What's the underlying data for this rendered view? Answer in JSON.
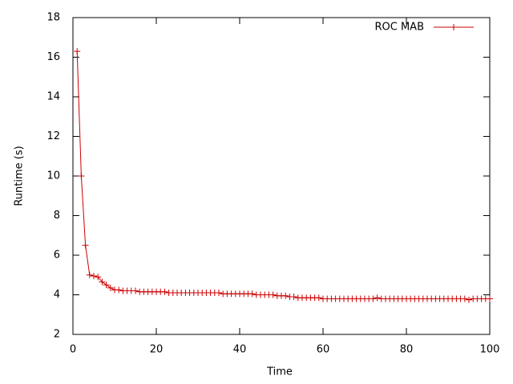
{
  "chart_data": {
    "type": "line",
    "x_label": "Time",
    "y_label": "Runtime (s)",
    "x": [
      1,
      2,
      3,
      4,
      5,
      6,
      7,
      8,
      9,
      10,
      11,
      12,
      13,
      14,
      15,
      16,
      17,
      18,
      19,
      20,
      21,
      22,
      23,
      24,
      25,
      26,
      27,
      28,
      29,
      30,
      31,
      32,
      33,
      34,
      35,
      36,
      37,
      38,
      39,
      40,
      41,
      42,
      43,
      44,
      45,
      46,
      47,
      48,
      49,
      50,
      51,
      52,
      53,
      54,
      55,
      56,
      57,
      58,
      59,
      60,
      61,
      62,
      63,
      64,
      65,
      66,
      67,
      68,
      69,
      70,
      71,
      72,
      73,
      74,
      75,
      76,
      77,
      78,
      79,
      80,
      81,
      82,
      83,
      84,
      85,
      86,
      87,
      88,
      89,
      90,
      91,
      92,
      93,
      94,
      95,
      96,
      97,
      98,
      99,
      100
    ],
    "series": [
      {
        "name": "ROC MAB",
        "color": "#cc0000",
        "values": [
          16.3,
          10.0,
          6.5,
          5.0,
          4.95,
          4.9,
          4.65,
          4.5,
          4.35,
          4.25,
          4.25,
          4.2,
          4.2,
          4.2,
          4.2,
          4.15,
          4.15,
          4.15,
          4.15,
          4.15,
          4.15,
          4.15,
          4.1,
          4.1,
          4.1,
          4.1,
          4.1,
          4.1,
          4.1,
          4.1,
          4.1,
          4.1,
          4.1,
          4.1,
          4.1,
          4.05,
          4.05,
          4.05,
          4.05,
          4.05,
          4.05,
          4.05,
          4.05,
          4.0,
          4.0,
          4.0,
          4.0,
          4.0,
          3.95,
          3.95,
          3.95,
          3.9,
          3.9,
          3.85,
          3.85,
          3.85,
          3.85,
          3.85,
          3.85,
          3.8,
          3.8,
          3.8,
          3.8,
          3.8,
          3.8,
          3.8,
          3.8,
          3.8,
          3.8,
          3.8,
          3.8,
          3.8,
          3.85,
          3.8,
          3.8,
          3.8,
          3.8,
          3.8,
          3.8,
          3.8,
          3.8,
          3.8,
          3.8,
          3.8,
          3.8,
          3.8,
          3.8,
          3.8,
          3.8,
          3.8,
          3.8,
          3.8,
          3.8,
          3.8,
          3.75,
          3.8,
          3.8,
          3.8,
          3.8,
          3.8
        ]
      }
    ],
    "xlim": [
      0,
      100
    ],
    "xticks": [
      0,
      20,
      40,
      60,
      80,
      100
    ],
    "ylim": [
      2,
      18
    ],
    "yticks": [
      2,
      4,
      6,
      8,
      10,
      12,
      14,
      16,
      18
    ],
    "legend": "top-right",
    "grid": false,
    "mirror_ticks": true
  }
}
